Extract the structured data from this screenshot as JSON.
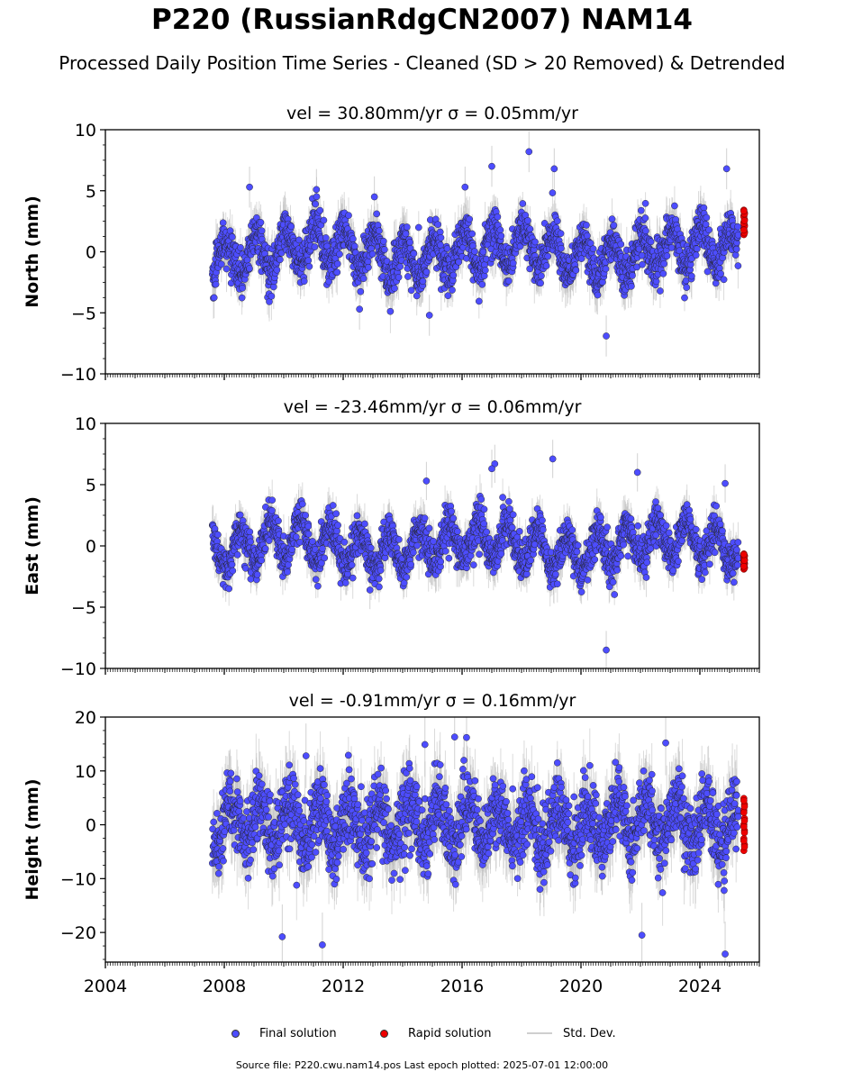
{
  "header": {
    "title": "P220 (RussianRdgCN2007) NAM14",
    "subtitle": "Processed Daily Position Time Series - Cleaned (SD > 20 Removed) & Detrended"
  },
  "legend": {
    "final": "Final solution",
    "rapid": "Rapid solution",
    "sd": "Std. Dev."
  },
  "footer": {
    "source": "Source file: P220.cwu.nam14.pos  Last epoch plotted: 2025-07-01 12:00:00"
  },
  "colors": {
    "final": "#4d4dff",
    "rapid": "#ee0000",
    "sd": "#bdbdbd",
    "marker_edge": "#222222"
  },
  "chart_data": [
    {
      "type": "scatter",
      "title": "vel = 30.80mm/yr   σ = 0.05mm/yr",
      "ylabel": "North (mm)",
      "xlim": [
        2004.0,
        2026.0
      ],
      "ylim": [
        -10,
        10
      ],
      "yticks": [
        -10,
        -5,
        0,
        5,
        10
      ],
      "ytick_labels": [
        "−10",
        "−5",
        "0",
        "5",
        "10"
      ],
      "data_start": 2007.6,
      "rapid_start": 2025.3,
      "data_end": 2025.5,
      "noise_sd": 1.1,
      "annual_amplitude": 1.6,
      "annual_phase": 0.2,
      "sd_halfwidth": 1.4,
      "outliers": [
        {
          "x": 2008.85,
          "y": 5.3
        },
        {
          "x": 2018.25,
          "y": 8.2
        },
        {
          "x": 2020.85,
          "y": -6.9
        },
        {
          "x": 2017.0,
          "y": 7.0
        },
        {
          "x": 2019.1,
          "y": 6.8
        },
        {
          "x": 2016.1,
          "y": 5.3
        },
        {
          "x": 2013.05,
          "y": 4.5
        },
        {
          "x": 2024.9,
          "y": 6.8
        },
        {
          "x": 2011.1,
          "y": 5.1
        },
        {
          "x": 2014.9,
          "y": -5.2
        },
        {
          "x": 2012.55,
          "y": -4.7
        }
      ],
      "rapid_range": [
        1.4,
        3.5
      ]
    },
    {
      "type": "scatter",
      "title": "vel = -23.46mm/yr   σ = 0.06mm/yr",
      "ylabel": "East (mm)",
      "xlim": [
        2004.0,
        2026.0
      ],
      "ylim": [
        -10,
        10
      ],
      "yticks": [
        -10,
        -5,
        0,
        5,
        10
      ],
      "ytick_labels": [
        "−10",
        "−5",
        "0",
        "5",
        "10"
      ],
      "data_start": 2007.6,
      "rapid_start": 2025.3,
      "data_end": 2025.5,
      "noise_sd": 1.0,
      "annual_amplitude": 1.5,
      "annual_phase": 0.7,
      "sd_halfwidth": 1.3,
      "outliers": [
        {
          "x": 2020.85,
          "y": -8.5
        },
        {
          "x": 2014.8,
          "y": 5.3
        },
        {
          "x": 2017.1,
          "y": 6.7
        },
        {
          "x": 2019.05,
          "y": 7.1
        },
        {
          "x": 2021.9,
          "y": 6.0
        },
        {
          "x": 2024.85,
          "y": 5.1
        },
        {
          "x": 2012.9,
          "y": -3.6
        },
        {
          "x": 2017.0,
          "y": 6.3
        }
      ],
      "rapid_range": [
        -1.9,
        -0.6
      ]
    },
    {
      "type": "scatter",
      "title": "vel = -0.91mm/yr   σ = 0.16mm/yr",
      "ylabel": "Height (mm)",
      "xlabel": "",
      "xlim": [
        2004.0,
        2026.0
      ],
      "ylim": [
        -25.5,
        20
      ],
      "yticks": [
        -20,
        -10,
        0,
        10,
        20
      ],
      "ytick_labels": [
        "−20",
        "−10",
        "0",
        "10",
        "20"
      ],
      "xticks": [
        2004,
        2008,
        2012,
        2016,
        2020,
        2024
      ],
      "xtick_labels": [
        "2004",
        "2008",
        "2012",
        "2016",
        "2020",
        "2024"
      ],
      "data_start": 2007.6,
      "rapid_start": 2025.3,
      "data_end": 2025.5,
      "noise_sd": 4.2,
      "annual_amplitude": 4.0,
      "annual_phase": 0.05,
      "sd_halfwidth": 5.0,
      "outliers": [
        {
          "x": 2024.85,
          "y": -24.0
        },
        {
          "x": 2011.3,
          "y": -22.3
        },
        {
          "x": 2022.05,
          "y": -20.5
        },
        {
          "x": 2015.75,
          "y": 16.3
        },
        {
          "x": 2016.15,
          "y": 16.2
        },
        {
          "x": 2022.85,
          "y": 15.2
        },
        {
          "x": 2014.75,
          "y": 14.9
        },
        {
          "x": 2010.75,
          "y": 12.8
        },
        {
          "x": 2009.95,
          "y": -20.8
        }
      ],
      "rapid_range": [
        -4.8,
        5.3
      ]
    }
  ]
}
